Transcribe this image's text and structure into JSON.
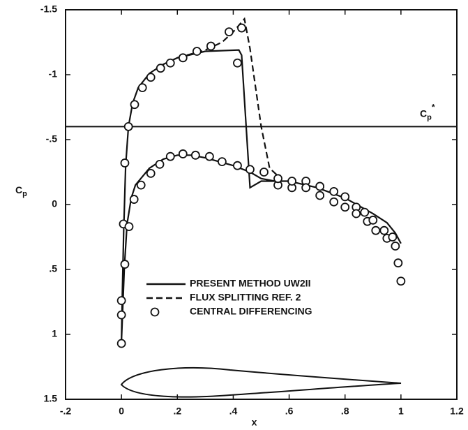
{
  "chart_data": {
    "type": "line",
    "xlabel": "x",
    "ylabel": {
      "base": "C",
      "subscript": "p"
    },
    "xlim": [
      -0.2,
      1.2
    ],
    "ylim": [
      -1.5,
      1.5
    ],
    "y_inverted": true,
    "xticks": [
      {
        "value": -0.2,
        "label": "-.2"
      },
      0,
      {
        "value": 0.2,
        "label": ".2"
      },
      {
        "value": 0.4,
        "label": ".4"
      },
      {
        "value": 0.6,
        "label": ".6"
      },
      {
        "value": 0.8,
        "label": ".8"
      },
      1,
      1.2
    ],
    "yticks": [
      -1.5,
      -1,
      {
        "value": -0.5,
        "label": "-.5"
      },
      0,
      {
        "value": 0.5,
        "label": ".5"
      },
      1,
      1.5
    ],
    "reference_line": {
      "value": -0.6,
      "label": {
        "base": "C",
        "subscript": "p",
        "superscript": "*"
      }
    },
    "series": [
      {
        "name": "PRESENT METHOD UW2II",
        "type": "line",
        "style": "solid",
        "color": "#111111",
        "x": [
          0,
          0.003,
          0.008,
          0.015,
          0.025,
          0.04,
          0.06,
          0.1,
          0.15,
          0.2,
          0.3,
          0.42,
          0.43,
          0.46,
          0.5,
          0.6,
          0.7,
          0.8,
          0.9,
          0.95,
          0.98,
          1.0,
          null,
          0,
          0.01,
          0.02,
          0.035,
          0.05,
          0.1,
          0.15,
          0.2,
          0.25,
          0.3,
          0.4,
          0.46,
          0.5,
          0.55
        ],
        "values": [
          1.05,
          0.7,
          0.2,
          -0.3,
          -0.6,
          -0.78,
          -0.9,
          -1.01,
          -1.08,
          -1.13,
          -1.18,
          -1.19,
          -1.15,
          -0.13,
          -0.18,
          -0.18,
          -0.13,
          -0.05,
          0.07,
          0.14,
          0.22,
          0.3,
          null,
          1.05,
          0.5,
          0.15,
          -0.05,
          -0.15,
          -0.28,
          -0.35,
          -0.38,
          -0.38,
          -0.36,
          -0.3,
          -0.25,
          -0.2,
          -0.18
        ]
      },
      {
        "name": "FLUX SPLITTING REF. 2",
        "type": "line",
        "style": "dashed",
        "color": "#111111",
        "x": [
          0.2,
          0.3,
          0.36,
          0.4,
          0.44,
          0.46,
          0.5,
          0.53,
          0.57
        ],
        "values": [
          -1.13,
          -1.19,
          -1.25,
          -1.33,
          -1.43,
          -1.2,
          -0.6,
          -0.28,
          -0.2
        ]
      },
      {
        "name": "CENTRAL DIFFERENCING",
        "type": "scatter",
        "marker": "circle",
        "color": "#111111",
        "x": [
          0,
          0,
          0,
          0.012,
          0.007,
          0.012,
          0.025,
          0.047,
          0.075,
          0.105,
          0.14,
          0.175,
          0.22,
          0.27,
          0.32,
          0.385,
          0.43,
          0.415,
          0.46,
          0.027,
          0.045,
          0.07,
          0.105,
          0.137,
          0.175,
          0.22,
          0.265,
          0.315,
          0.36,
          0.415,
          0.51,
          0.56,
          0.56,
          0.61,
          0.61,
          0.66,
          0.66,
          0.71,
          0.71,
          0.76,
          0.76,
          0.8,
          0.8,
          0.84,
          0.84,
          0.87,
          0.88,
          0.9,
          0.91,
          0.94,
          0.95,
          0.97,
          0.98,
          0.99,
          1.0
        ],
        "values": [
          1.07,
          0.85,
          0.74,
          0.46,
          0.15,
          -0.32,
          -0.6,
          -0.77,
          -0.9,
          -0.98,
          -1.05,
          -1.09,
          -1.13,
          -1.18,
          -1.22,
          -1.33,
          -1.36,
          -1.09,
          -0.27,
          0.17,
          -0.04,
          -0.15,
          -0.24,
          -0.31,
          -0.37,
          -0.39,
          -0.38,
          -0.37,
          -0.33,
          -0.3,
          -0.25,
          -0.15,
          -0.2,
          -0.13,
          -0.18,
          -0.18,
          -0.13,
          -0.14,
          -0.07,
          -0.1,
          -0.02,
          -0.06,
          0.02,
          0.02,
          0.07,
          0.06,
          0.13,
          0.12,
          0.2,
          0.2,
          0.26,
          0.25,
          0.32,
          0.45,
          0.59
        ]
      }
    ]
  }
}
